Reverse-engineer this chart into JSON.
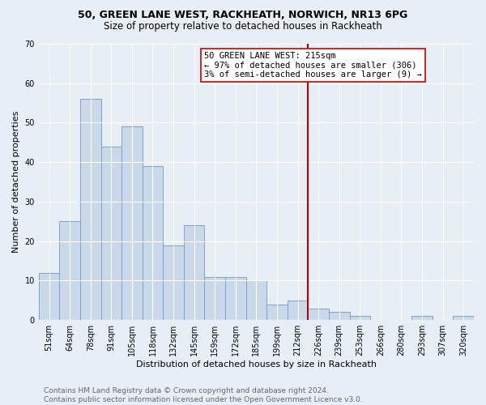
{
  "title": "50, GREEN LANE WEST, RACKHEATH, NORWICH, NR13 6PG",
  "subtitle": "Size of property relative to detached houses in Rackheath",
  "xlabel": "Distribution of detached houses by size in Rackheath",
  "ylabel": "Number of detached properties",
  "bar_labels": [
    "51sqm",
    "64sqm",
    "78sqm",
    "91sqm",
    "105sqm",
    "118sqm",
    "132sqm",
    "145sqm",
    "159sqm",
    "172sqm",
    "185sqm",
    "199sqm",
    "212sqm",
    "226sqm",
    "239sqm",
    "253sqm",
    "266sqm",
    "280sqm",
    "293sqm",
    "307sqm",
    "320sqm"
  ],
  "bar_values": [
    12,
    25,
    56,
    44,
    49,
    39,
    19,
    24,
    11,
    11,
    10,
    4,
    5,
    3,
    2,
    1,
    0,
    0,
    1,
    0,
    1
  ],
  "bar_color": "#c9d9ea",
  "bar_edge_color": "#7ba3c8",
  "marker_line_color": "#bb0000",
  "marker_label": "50 GREEN LANE WEST: 215sqm",
  "annotation_line1": "← 97% of detached houses are smaller (306)",
  "annotation_line2": "3% of semi-detached houses are larger (9) →",
  "annotation_box_color": "#ffffff",
  "annotation_box_edge": "#cc0000",
  "ylim": [
    0,
    70
  ],
  "yticks": [
    0,
    10,
    20,
    30,
    40,
    50,
    60,
    70
  ],
  "bg_color": "#e8eef5",
  "grid_color": "#d0d8e0",
  "footer_line1": "Contains HM Land Registry data © Crown copyright and database right 2024.",
  "footer_line2": "Contains public sector information licensed under the Open Government Licence v3.0.",
  "title_fontsize": 9,
  "subtitle_fontsize": 8.5,
  "xlabel_fontsize": 8,
  "ylabel_fontsize": 8,
  "tick_fontsize": 7,
  "annotation_fontsize": 7.5,
  "footer_fontsize": 6.5
}
